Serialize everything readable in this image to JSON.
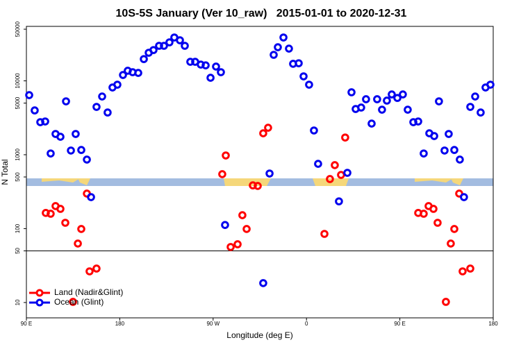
{
  "chart_data": {
    "type": "scatter",
    "title": "10S-5S January (Ver 10_raw)   2015-01-01 to 2020-12-31",
    "xlabel": "Longitude (deg E)",
    "ylabel": "N Total",
    "xlim": [
      90,
      540
    ],
    "ylim": [
      6.2,
      54600
    ],
    "ylog": true,
    "xticks": [
      {
        "value": 90,
        "label": "90 E"
      },
      180,
      {
        "value": 270,
        "label": "90 W"
      },
      {
        "value": 360,
        "label": "0"
      },
      {
        "value": 450,
        "label": "90 E"
      },
      {
        "value": 540,
        "label": "180"
      }
    ],
    "yticks": [
      10,
      50,
      100,
      500,
      1000,
      5000,
      10000,
      50000
    ],
    "hline": 50,
    "legend": "lower left",
    "series": [
      {
        "name": "Land (Nadir&Glint)",
        "color": "#ff0000",
        "x": [
          108.7,
          113.4,
          118.1,
          122.8,
          127.5,
          134.9,
          139.6,
          142.9,
          148.3,
          150.9,
          157.6,
          278.8,
          282.2,
          286.9,
          293.6,
          298.2,
          302.3,
          308.3,
          313,
          318.3,
          323,
          377.3,
          382.6,
          387.3,
          393.3,
          397.3,
          467.7,
          473,
          477.7,
          482.4,
          486.4,
          494.4,
          499.1,
          502.5,
          507.2,
          510.5,
          517.9
        ],
        "values": [
          163,
          159,
          202,
          185,
          120,
          10.2,
          62.8,
          98.9,
          298,
          26.4,
          28.8,
          546,
          977,
          56.4,
          61.4,
          152,
          98.9,
          385,
          378,
          1950,
          2320,
          84.9,
          469,
          723,
          533,
          1710,
          163,
          159,
          202,
          185,
          120,
          10.2,
          62.8,
          98.9,
          298,
          26.4,
          28.8
        ]
      },
      {
        "name": "Ocean (Glint)",
        "color": "#0000ee",
        "x": [
          92.7,
          98,
          103.4,
          108.1,
          113.4,
          118.1,
          122.8,
          128.2,
          132.9,
          137.5,
          142.9,
          148.3,
          152.3,
          157.6,
          163,
          168.3,
          173,
          177.7,
          183.1,
          187.7,
          192.4,
          197.8,
          203.2,
          207.9,
          212.5,
          217.9,
          222.6,
          227.9,
          232.6,
          238,
          242.7,
          248,
          252.7,
          258.1,
          262.8,
          267.5,
          272.8,
          277.5,
          281.5,
          318.3,
          324.4,
          328.4,
          332.4,
          337.8,
          343.1,
          347.1,
          352.5,
          357.2,
          362.5,
          367.2,
          371.2,
          391.3,
          399.4,
          403.4,
          407.4,
          412.7,
          417.4,
          422.8,
          428.1,
          432.8,
          437.5,
          442.2,
          447.6,
          452.9,
          457.6,
          463,
          467.7,
          473,
          478.4,
          483.1,
          487.7,
          493.1,
          497.1,
          502.5,
          507.8,
          511.8,
          517.9,
          522.6,
          527.9,
          532.6,
          537.3
        ],
        "values": [
          6410,
          3980,
          2760,
          2820,
          1040,
          1910,
          1750,
          5280,
          1140,
          1910,
          1160,
          860,
          267,
          4440,
          6140,
          3730,
          8130,
          8870,
          12000,
          13700,
          13100,
          12800,
          19700,
          24000,
          26100,
          29800,
          29800,
          33200,
          38600,
          35400,
          29800,
          18100,
          18100,
          16600,
          16200,
          11000,
          15600,
          13100,
          112,
          18.3,
          557,
          22500,
          28500,
          38600,
          27300,
          17000,
          17300,
          11500,
          8870,
          2130,
          753,
          234,
          569,
          7000,
          4160,
          4350,
          5640,
          2640,
          5640,
          4070,
          5400,
          6550,
          5870,
          6550,
          4070,
          2760,
          2820,
          1040,
          1950,
          1790,
          5280,
          1140,
          1910,
          1160,
          860,
          267,
          4440,
          6140,
          3730,
          8130,
          8870
        ]
      }
    ]
  }
}
